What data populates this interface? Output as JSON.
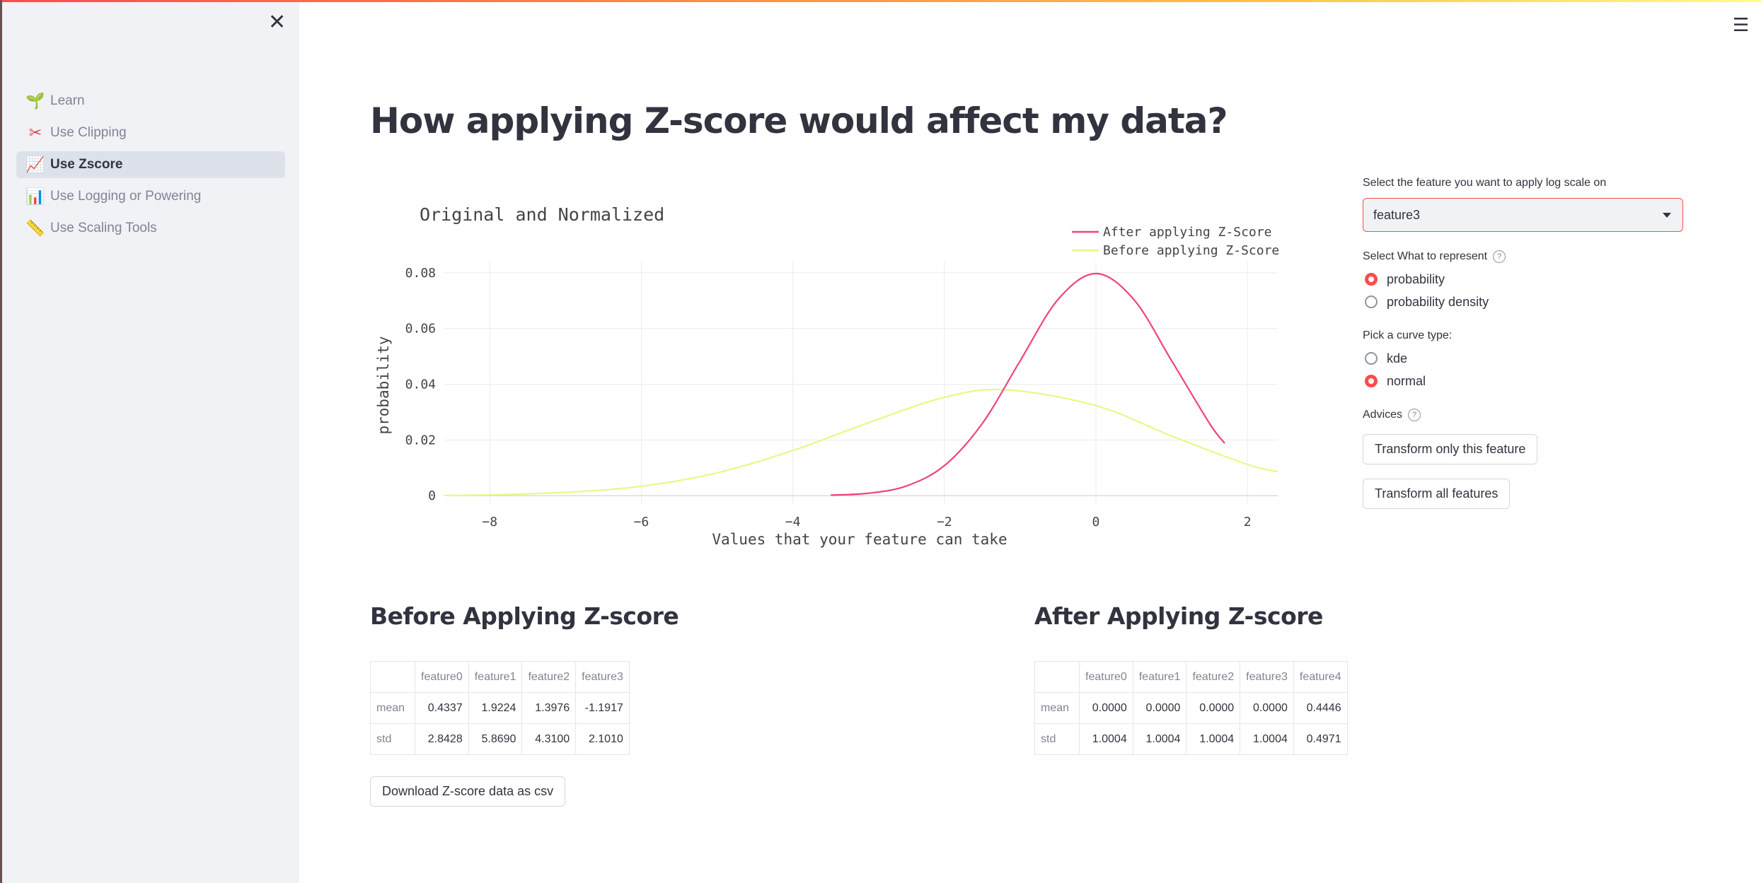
{
  "sidebar": {
    "close_icon": "close-icon",
    "items": [
      {
        "icon": "🌱",
        "label": "Learn",
        "active": false
      },
      {
        "icon": "✂",
        "label": "Use Clipping",
        "active": false
      },
      {
        "icon": "📈",
        "label": "Use Zscore",
        "active": true
      },
      {
        "icon": "📊",
        "label": "Use Logging or Powering",
        "active": false
      },
      {
        "icon": "📏",
        "label": "Use Scaling Tools",
        "active": false
      }
    ]
  },
  "header": {
    "menu_icon": "hamburger-icon"
  },
  "main": {
    "title": "How applying Z-score would affect my data?",
    "before_heading": "Before Applying Z-score",
    "after_heading": "After Applying Z-score",
    "download_label": "Download Z-score data as csv"
  },
  "chart_data": {
    "type": "line",
    "title": "Original and Normalized",
    "xlabel": "Values that your feature can take",
    "ylabel": "probability",
    "xlim": [
      -8.6,
      2.4
    ],
    "ylim": [
      -0.003,
      0.084
    ],
    "x_ticks": [
      -8,
      -6,
      -4,
      -2,
      0,
      2
    ],
    "x_tick_labels": [
      "−8",
      "−6",
      "−4",
      "−2",
      "0",
      "2"
    ],
    "y_ticks": [
      0,
      0.02,
      0.04,
      0.06,
      0.08
    ],
    "y_tick_labels": [
      "0",
      "0.02",
      "0.04",
      "0.06",
      "0.08"
    ],
    "grid": true,
    "legend_position": "top-right",
    "series": [
      {
        "name": "After applying Z-Score",
        "color": "#f0447a",
        "x": [
          -3.5,
          -3.0,
          -2.5,
          -2.0,
          -1.5,
          -1.0,
          -0.5,
          0.0,
          0.5,
          1.0,
          1.5,
          1.7
        ],
        "y": [
          0.0002,
          0.0009,
          0.0035,
          0.0108,
          0.0259,
          0.0484,
          0.0704,
          0.0797,
          0.0704,
          0.0484,
          0.0259,
          0.0188
        ]
      },
      {
        "name": "Before applying Z-Score",
        "color": "#e4fa87",
        "x": [
          -8.6,
          -8,
          -7,
          -6,
          -5,
          -4,
          -3,
          -2,
          -1.19,
          0,
          1,
          2,
          2.4
        ],
        "y": [
          0.0001,
          0.0003,
          0.0012,
          0.0034,
          0.0082,
          0.0162,
          0.0262,
          0.0353,
          0.038,
          0.0323,
          0.0214,
          0.0112,
          0.0086
        ]
      }
    ]
  },
  "controls": {
    "feature_label": "Select the feature you want to apply log scale on",
    "feature_value": "feature3",
    "represent_label": "Select What to represent",
    "represent_options": [
      "probability",
      "probability density"
    ],
    "represent_selected": 0,
    "curve_label": "Pick a curve type:",
    "curve_options": [
      "kde",
      "normal"
    ],
    "curve_selected": 1,
    "advices_label": "Advices",
    "transform_one": "Transform only this feature",
    "transform_all": "Transform all features"
  },
  "before_table": {
    "columns": [
      "",
      "feature0",
      "feature1",
      "feature2",
      "feature3"
    ],
    "rows": [
      [
        "mean",
        "0.4337",
        "1.9224",
        "1.3976",
        "-1.1917"
      ],
      [
        "std",
        "2.8428",
        "5.8690",
        "4.3100",
        "2.1010"
      ]
    ]
  },
  "after_table": {
    "columns": [
      "",
      "feature0",
      "feature1",
      "feature2",
      "feature3",
      "feature4"
    ],
    "rows": [
      [
        "mean",
        "0.0000",
        "0.0000",
        "0.0000",
        "0.0000",
        "0.4446"
      ],
      [
        "std",
        "1.0004",
        "1.0004",
        "1.0004",
        "1.0004",
        "0.4971"
      ]
    ]
  }
}
